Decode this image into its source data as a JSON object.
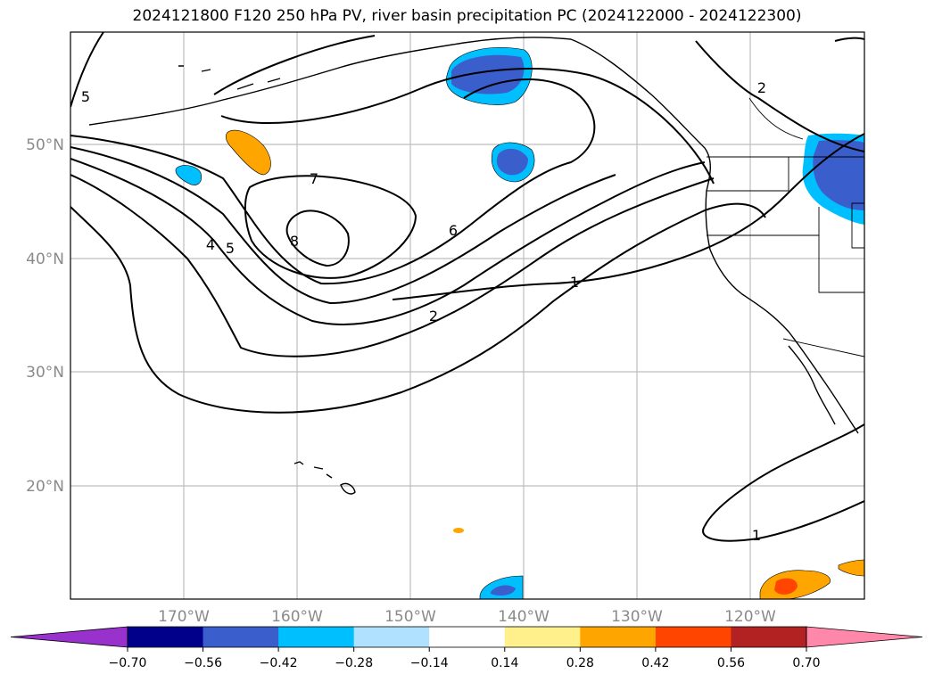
{
  "title": "2024121800 F120 250 hPa PV, river basin precipitation PC (2024122000 - 2024122300)",
  "map": {
    "lon_labels": [
      "170°W",
      "160°W",
      "150°W",
      "140°W",
      "130°W",
      "120°W"
    ],
    "lat_labels": [
      "50°N",
      "40°N",
      "30°N",
      "20°N"
    ],
    "contour_labels": [
      "5",
      "7",
      "8",
      "4",
      "5",
      "6",
      "2",
      "1",
      "2",
      "1"
    ]
  },
  "colorbar": {
    "ticks": [
      "−0.70",
      "−0.56",
      "−0.42",
      "−0.28",
      "−0.14",
      "0.14",
      "0.28",
      "0.42",
      "0.56",
      "0.70"
    ],
    "colors": [
      "#9932cc",
      "#00008b",
      "#3a5fcd",
      "#00bfff",
      "#b0e2ff",
      "#ffffff",
      "#fff08c",
      "#ffa500",
      "#ff4500",
      "#b22222",
      "#ff88aa"
    ]
  }
}
